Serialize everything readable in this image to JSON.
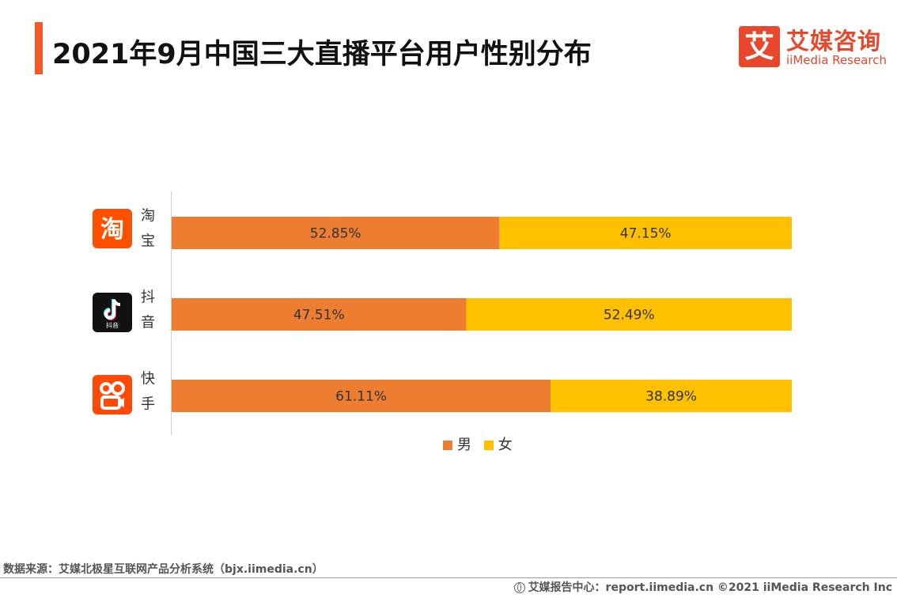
{
  "header": {
    "title": "2021年9月中国三大直播平台用户性别分布"
  },
  "logo": {
    "mark": "艾",
    "name_cn": "艾媒咨询",
    "name_en": "iiMedia Research"
  },
  "colors": {
    "accent": "#F05A28",
    "male": "#ED7D31",
    "female": "#FFC000",
    "taobao_icon": "#FF5000",
    "douyin_icon": "#111111",
    "kuaishou_icon": "#FF4906"
  },
  "icons": {
    "taobao": "taobao-icon",
    "douyin": "douyin-icon",
    "kuaishou": "kuaishou-icon"
  },
  "chart_data": {
    "type": "bar",
    "orientation": "horizontal",
    "stacked": true,
    "percent": true,
    "title": "2021年9月中国三大直播平台用户性别分布",
    "categories": [
      "淘宝",
      "抖音",
      "快手"
    ],
    "series": [
      {
        "name": "男",
        "values": [
          52.85,
          47.51,
          61.11
        ],
        "labels": [
          "52.85%",
          "47.51%",
          "61.11%"
        ]
      },
      {
        "name": "女",
        "values": [
          47.15,
          52.49,
          38.89
        ],
        "labels": [
          "47.15%",
          "52.49%",
          "38.89%"
        ]
      }
    ],
    "xlim": [
      0,
      100
    ],
    "legend": "bottom"
  },
  "icon_text": {
    "taobao": "淘",
    "douyin_sub": "抖音"
  },
  "footer": {
    "source": "数据来源：艾媒北极星互联网产品分析系统（bjx.iimedia.cn）",
    "report": "艾媒报告中心：report.iimedia.cn  ©2021  iiMedia Research  Inc"
  }
}
